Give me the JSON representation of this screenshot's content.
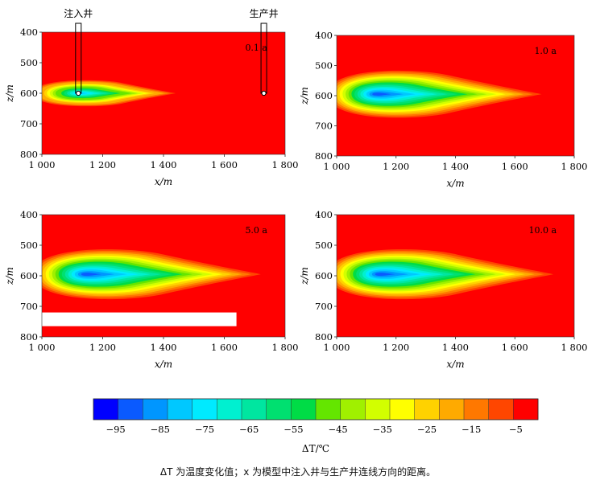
{
  "figure": {
    "caption": "ΔT 为温度变化值；x 为模型中注入井与生产井连线方向的距离。",
    "injection_well_label": "注入井",
    "production_well_label": "生产井"
  },
  "colors": {
    "background_field": "#ff0000",
    "colorbar": [
      "#0000ff",
      "#0a5aff",
      "#0096ff",
      "#00c8ff",
      "#00eaff",
      "#00f0d0",
      "#00e6a0",
      "#00e070",
      "#00dc46",
      "#64e600",
      "#a0f000",
      "#d2ff00",
      "#ffff00",
      "#ffd200",
      "#ffaa00",
      "#ff7800",
      "#ff4600",
      "#ff0000"
    ]
  },
  "chart_data": [
    {
      "type": "heatmap",
      "panel": "top-left",
      "annotation": "0.1 a",
      "xlabel": "x/m",
      "ylabel": "z/m",
      "xlim": [
        1000,
        1800
      ],
      "ylim": [
        800,
        400
      ],
      "x_ticks": [
        1000,
        1200,
        1400,
        1600,
        1800
      ],
      "x_tick_labels": [
        "1 000",
        "1 200",
        "1 400",
        "1 600",
        "1 800"
      ],
      "y_ticks": [
        400,
        500,
        600,
        700,
        800
      ],
      "y_tick_labels": [
        "400",
        "500",
        "600",
        "700",
        "800"
      ],
      "injection_well": {
        "x": 1120,
        "z": 600
      },
      "production_well": {
        "x": 1730,
        "z": 600
      },
      "cold_zone": {
        "x_core": 1120,
        "z_center": 600,
        "x_left": 1000,
        "x_right": 1440,
        "z_half": 48,
        "min_dT": -80
      }
    },
    {
      "type": "heatmap",
      "panel": "top-right",
      "annotation": "1.0 a",
      "xlabel": "x/m",
      "ylabel": "z/m",
      "xlim": [
        1000,
        1800
      ],
      "ylim": [
        800,
        400
      ],
      "x_ticks": [
        1000,
        1200,
        1400,
        1600,
        1800
      ],
      "x_tick_labels": [
        "1 000",
        "1 200",
        "1 400",
        "1 600",
        "1 800"
      ],
      "y_ticks": [
        400,
        500,
        600,
        700,
        800
      ],
      "y_tick_labels": [
        "400",
        "500",
        "600",
        "700",
        "800"
      ],
      "cold_zone": {
        "x_core": 1130,
        "z_center": 595,
        "x_left": 1000,
        "x_right": 1690,
        "z_half": 88,
        "min_dT": -95
      }
    },
    {
      "type": "heatmap",
      "panel": "bottom-left",
      "annotation": "5.0 a",
      "xlabel": "x/m",
      "ylabel": "z/m",
      "xlim": [
        1000,
        1800
      ],
      "ylim": [
        800,
        400
      ],
      "x_ticks": [
        1000,
        1200,
        1400,
        1600,
        1800
      ],
      "x_tick_labels": [
        "1 000",
        "1 200",
        "1 400",
        "1 600",
        "1 800"
      ],
      "y_ticks": [
        400,
        500,
        600,
        700,
        800
      ],
      "y_tick_labels": [
        "400",
        "500",
        "600",
        "700",
        "800"
      ],
      "cold_zone": {
        "x_core": 1140,
        "z_center": 595,
        "x_left": 1000,
        "x_right": 1720,
        "z_half": 92,
        "min_dT": -95
      }
    },
    {
      "type": "heatmap",
      "panel": "bottom-right",
      "annotation": "10.0 a",
      "xlabel": "x/m",
      "ylabel": "z/m",
      "xlim": [
        1000,
        1800
      ],
      "ylim": [
        800,
        400
      ],
      "x_ticks": [
        1000,
        1200,
        1400,
        1600,
        1800
      ],
      "x_tick_labels": [
        "1 000",
        "1 200",
        "1 400",
        "1 600",
        "1 800"
      ],
      "y_ticks": [
        400,
        500,
        600,
        700,
        800
      ],
      "y_tick_labels": [
        "400",
        "500",
        "600",
        "700",
        "800"
      ],
      "cold_zone": {
        "x_core": 1140,
        "z_center": 595,
        "x_left": 1000,
        "x_right": 1730,
        "z_half": 92,
        "min_dT": -95
      }
    }
  ],
  "colorbar": {
    "label": "ΔT/℃",
    "range": [
      -100,
      0
    ],
    "tick_values": [
      -95,
      -85,
      -75,
      -65,
      -55,
      -45,
      -35,
      -25,
      -15,
      -5
    ],
    "tick_labels": [
      "−95",
      "−85",
      "−75",
      "−65",
      "−55",
      "−45",
      "−35",
      "−25",
      "−15",
      "−5"
    ]
  }
}
